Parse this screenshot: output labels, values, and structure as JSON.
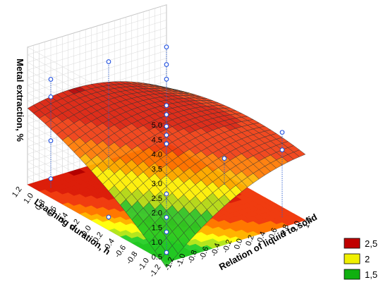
{
  "chart_data": {
    "type": "surface",
    "zlabel": "Metal extraction, %",
    "ylabel": "Leaching duration, h",
    "xlabel": "Relation of liquid to solid",
    "z_ticks": [
      "0.5",
      "1.0",
      "1.5",
      "2.0",
      "2.5",
      "3.0",
      "3.5",
      "4.0",
      "4.5",
      "5.0"
    ],
    "y_ticks": [
      "1.2",
      "1.0",
      "0.8",
      "0.6",
      "0.4",
      "0.2",
      "0.0",
      "-0.2",
      "-0.4",
      "-0.6",
      "-0.8",
      "-1.0",
      "-1.2"
    ],
    "x_ticks": [
      "-1.2",
      "-1.0",
      "-0.8",
      "-0.6",
      "-0.4",
      "-0.2",
      "0.0",
      "0.2",
      "0.4",
      "0.6",
      "0.8",
      "1.0",
      "1.2"
    ],
    "zlim": [
      0.3,
      5.0
    ],
    "xlim": [
      -1.2,
      1.2
    ],
    "ylim": [
      -1.2,
      1.2
    ],
    "grid": true,
    "legend_position": "bottom-right",
    "legend": [
      {
        "label": "2,5",
        "color": "#c00000"
      },
      {
        "label": "2",
        "color": "#f0f000"
      },
      {
        "label": "1,5",
        "color": "#10b010"
      }
    ],
    "surface_model": {
      "intercept": 2.8,
      "x": 0.35,
      "y": 0.5,
      "xy": -0.55,
      "x2": -0.35,
      "y2": -0.25
    },
    "color_levels": [
      {
        "max": 1.2,
        "color": "#22c822"
      },
      {
        "max": 1.5,
        "color": "#30d030"
      },
      {
        "max": 1.75,
        "color": "#b4e61e"
      },
      {
        "max": 2.0,
        "color": "#ffff10"
      },
      {
        "max": 2.25,
        "color": "#ffb400"
      },
      {
        "max": 2.5,
        "color": "#ff7800"
      },
      {
        "max": 2.8,
        "color": "#f03c10"
      },
      {
        "max": 3.1,
        "color": "#dc1e0a"
      },
      {
        "max": 99,
        "color": "#b40000"
      }
    ],
    "points": [
      {
        "x": -1.0,
        "y": 1.0,
        "z": 4.0
      },
      {
        "x": -1.0,
        "y": 1.0,
        "z": 3.4
      },
      {
        "x": -1.0,
        "y": 1.0,
        "z": 1.9
      },
      {
        "x": -1.0,
        "y": 1.0,
        "z": 0.6
      },
      {
        "x": 0.0,
        "y": 1.0,
        "z": 4.0
      },
      {
        "x": 1.0,
        "y": 1.0,
        "z": 3.9
      },
      {
        "x": 1.0,
        "y": 1.0,
        "z": 3.3
      },
      {
        "x": 1.0,
        "y": 1.0,
        "z": 2.8
      },
      {
        "x": 1.0,
        "y": 1.0,
        "z": 1.9
      },
      {
        "x": 1.0,
        "y": 1.0,
        "z": 0.6
      },
      {
        "x": -1.0,
        "y": 0.0,
        "z": 0.4
      },
      {
        "x": 0.0,
        "y": 0.0,
        "z": 3.3
      },
      {
        "x": 0.0,
        "y": 0.0,
        "z": 2.9
      },
      {
        "x": 0.0,
        "y": 0.0,
        "z": 2.6
      },
      {
        "x": 0.0,
        "y": 0.0,
        "z": 2.3
      },
      {
        "x": 1.0,
        "y": 0.0,
        "z": 1.2
      },
      {
        "x": -1.0,
        "y": -1.0,
        "z": 2.3
      },
      {
        "x": -1.0,
        "y": -1.0,
        "z": 1.5
      },
      {
        "x": -1.0,
        "y": -1.0,
        "z": 1.0
      },
      {
        "x": -1.0,
        "y": -1.0,
        "z": 0.3
      },
      {
        "x": 1.0,
        "y": -1.0,
        "z": 3.2
      },
      {
        "x": 1.0,
        "y": -1.0,
        "z": 2.6
      }
    ]
  }
}
